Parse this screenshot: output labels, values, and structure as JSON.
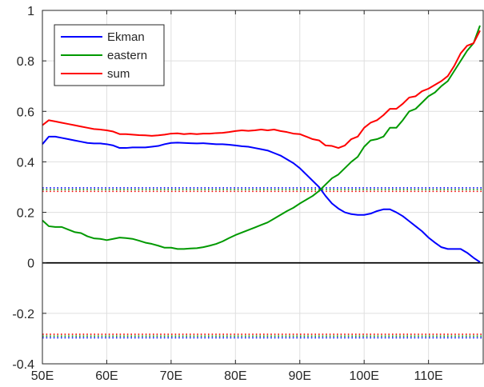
{
  "chart_data": {
    "type": "line",
    "xlim": [
      50,
      118.5
    ],
    "ylim": [
      -0.4,
      1
    ],
    "grid": true,
    "legend_position": "top-left",
    "x_ticks": [
      {
        "value": 50,
        "label": "50E"
      },
      {
        "value": 60,
        "label": "60E"
      },
      {
        "value": 70,
        "label": "70E"
      },
      {
        "value": 80,
        "label": "80E"
      },
      {
        "value": 90,
        "label": "90E"
      },
      {
        "value": 100,
        "label": "100E"
      },
      {
        "value": 110,
        "label": "110E"
      }
    ],
    "y_ticks": [
      {
        "value": -0.4,
        "label": "-0.4"
      },
      {
        "value": -0.2,
        "label": "-0.2"
      },
      {
        "value": 0,
        "label": "0"
      },
      {
        "value": 0.2,
        "label": "0.2"
      },
      {
        "value": 0.4,
        "label": "0.4"
      },
      {
        "value": 0.6,
        "label": "0.6"
      },
      {
        "value": 0.8,
        "label": "0.8"
      },
      {
        "value": 1,
        "label": "1"
      }
    ],
    "series": [
      {
        "name": "Ekman",
        "color": "#0000ff",
        "x": [
          50,
          51,
          52,
          53,
          54,
          55,
          56,
          57,
          58,
          59,
          60,
          61,
          62,
          63,
          64,
          65,
          66,
          67,
          68,
          69,
          70,
          71,
          72,
          73,
          74,
          75,
          76,
          77,
          78,
          79,
          80,
          81,
          82,
          83,
          84,
          85,
          86,
          87,
          88,
          89,
          90,
          91,
          92,
          93,
          94,
          95,
          96,
          97,
          98,
          99,
          100,
          101,
          102,
          103,
          104,
          105,
          106,
          107,
          108,
          109,
          110,
          111,
          112,
          113,
          114,
          115,
          116,
          117,
          118
        ],
        "y": [
          0.47,
          0.5,
          0.5,
          0.495,
          0.49,
          0.485,
          0.48,
          0.475,
          0.473,
          0.473,
          0.47,
          0.465,
          0.455,
          0.455,
          0.457,
          0.457,
          0.457,
          0.46,
          0.463,
          0.47,
          0.475,
          0.476,
          0.475,
          0.474,
          0.473,
          0.474,
          0.472,
          0.47,
          0.47,
          0.468,
          0.465,
          0.462,
          0.46,
          0.455,
          0.45,
          0.445,
          0.435,
          0.425,
          0.41,
          0.395,
          0.375,
          0.35,
          0.325,
          0.3,
          0.265,
          0.235,
          0.215,
          0.2,
          0.193,
          0.19,
          0.19,
          0.195,
          0.205,
          0.212,
          0.212,
          0.2,
          0.185,
          0.165,
          0.145,
          0.125,
          0.1,
          0.08,
          0.062,
          0.055,
          0.055,
          0.055,
          0.04,
          0.02,
          0.003
        ]
      },
      {
        "name": "eastern",
        "color": "#009900",
        "x": [
          50,
          51,
          52,
          53,
          54,
          55,
          56,
          57,
          58,
          59,
          60,
          61,
          62,
          63,
          64,
          65,
          66,
          67,
          68,
          69,
          70,
          71,
          72,
          73,
          74,
          75,
          76,
          77,
          78,
          79,
          80,
          81,
          82,
          83,
          84,
          85,
          86,
          87,
          88,
          89,
          90,
          91,
          92,
          93,
          94,
          95,
          96,
          97,
          98,
          99,
          100,
          101,
          102,
          103,
          104,
          105,
          106,
          107,
          108,
          109,
          110,
          111,
          112,
          113,
          114,
          115,
          116,
          117,
          118
        ],
        "y": [
          0.168,
          0.145,
          0.142,
          0.142,
          0.132,
          0.122,
          0.118,
          0.105,
          0.097,
          0.095,
          0.09,
          0.095,
          0.1,
          0.098,
          0.095,
          0.088,
          0.08,
          0.075,
          0.068,
          0.06,
          0.06,
          0.055,
          0.055,
          0.057,
          0.058,
          0.062,
          0.068,
          0.075,
          0.085,
          0.098,
          0.11,
          0.12,
          0.13,
          0.14,
          0.15,
          0.16,
          0.175,
          0.19,
          0.205,
          0.218,
          0.235,
          0.25,
          0.265,
          0.285,
          0.31,
          0.335,
          0.35,
          0.375,
          0.4,
          0.42,
          0.46,
          0.485,
          0.49,
          0.5,
          0.535,
          0.535,
          0.565,
          0.6,
          0.61,
          0.635,
          0.66,
          0.675,
          0.7,
          0.72,
          0.76,
          0.8,
          0.84,
          0.87,
          0.94
        ]
      },
      {
        "name": "sum",
        "color": "#ff0000",
        "x": [
          50,
          51,
          52,
          53,
          54,
          55,
          56,
          57,
          58,
          59,
          60,
          61,
          62,
          63,
          64,
          65,
          66,
          67,
          68,
          69,
          70,
          71,
          72,
          73,
          74,
          75,
          76,
          77,
          78,
          79,
          80,
          81,
          82,
          83,
          84,
          85,
          86,
          87,
          88,
          89,
          90,
          91,
          92,
          93,
          94,
          95,
          96,
          97,
          98,
          99,
          100,
          101,
          102,
          103,
          104,
          105,
          106,
          107,
          108,
          109,
          110,
          111,
          112,
          113,
          114,
          115,
          116,
          117,
          118
        ],
        "y": [
          0.545,
          0.565,
          0.56,
          0.555,
          0.55,
          0.545,
          0.54,
          0.535,
          0.53,
          0.528,
          0.525,
          0.52,
          0.51,
          0.51,
          0.508,
          0.506,
          0.505,
          0.503,
          0.505,
          0.508,
          0.512,
          0.513,
          0.51,
          0.512,
          0.51,
          0.512,
          0.512,
          0.514,
          0.515,
          0.518,
          0.522,
          0.525,
          0.523,
          0.525,
          0.528,
          0.525,
          0.528,
          0.522,
          0.518,
          0.512,
          0.51,
          0.5,
          0.49,
          0.485,
          0.465,
          0.463,
          0.455,
          0.465,
          0.49,
          0.5,
          0.535,
          0.555,
          0.565,
          0.585,
          0.61,
          0.61,
          0.63,
          0.655,
          0.66,
          0.68,
          0.69,
          0.705,
          0.72,
          0.74,
          0.78,
          0.83,
          0.86,
          0.87,
          0.92
        ]
      }
    ],
    "reference_lines": [
      {
        "y": 0,
        "color": "#000000",
        "style": "solid"
      },
      {
        "y": 0.297,
        "color": "#0000ff",
        "style": "dotted"
      },
      {
        "y": 0.29,
        "color": "#009900",
        "style": "dotted"
      },
      {
        "y": 0.283,
        "color": "#ff0000",
        "style": "dotted"
      },
      {
        "y": -0.283,
        "color": "#ff0000",
        "style": "dotted"
      },
      {
        "y": -0.29,
        "color": "#009900",
        "style": "dotted"
      },
      {
        "y": -0.297,
        "color": "#0000ff",
        "style": "dotted"
      }
    ]
  }
}
